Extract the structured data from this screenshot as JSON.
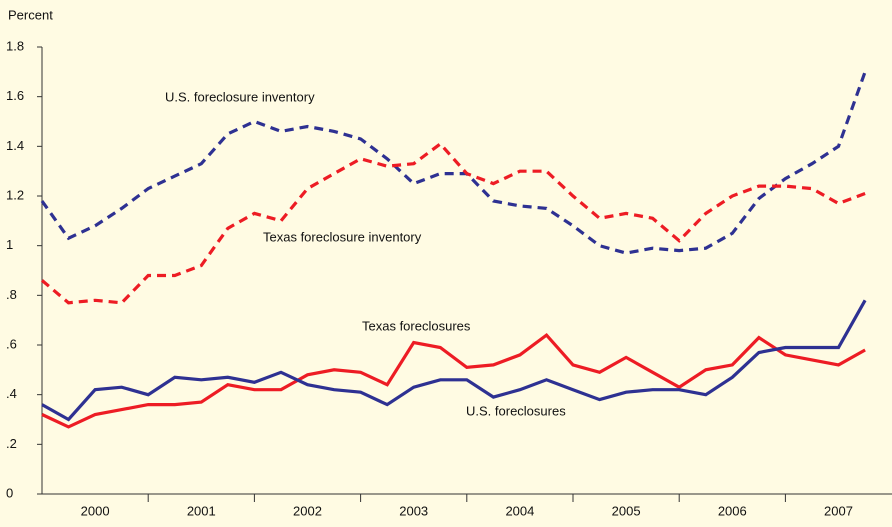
{
  "chart_data": {
    "type": "line",
    "y_label": "Percent",
    "categories": [
      "2000",
      null,
      null,
      null,
      "2001",
      null,
      null,
      null,
      "2002",
      null,
      null,
      null,
      "2003",
      null,
      null,
      null,
      "2004",
      null,
      null,
      null,
      "2005",
      null,
      null,
      null,
      "2006",
      null,
      null,
      null,
      "2007",
      null,
      null,
      null
    ],
    "series": [
      {
        "name": "U.S. foreclosure inventory",
        "color": "#2e3192",
        "dash": true,
        "values": [
          1.18,
          1.03,
          1.08,
          1.15,
          1.23,
          1.28,
          1.33,
          1.45,
          1.5,
          1.46,
          1.48,
          1.46,
          1.43,
          1.35,
          1.25,
          1.29,
          1.29,
          1.18,
          1.16,
          1.15,
          1.08,
          1.0,
          0.97,
          0.99,
          0.98,
          0.99,
          1.05,
          1.19,
          1.27,
          1.33,
          1.4,
          1.7
        ]
      },
      {
        "name": "Texas foreclosure inventory",
        "color": "#ed1c24",
        "dash": true,
        "values": [
          0.86,
          0.77,
          0.78,
          0.77,
          0.88,
          0.88,
          0.92,
          1.07,
          1.13,
          1.1,
          1.23,
          1.29,
          1.35,
          1.32,
          1.33,
          1.41,
          1.29,
          1.25,
          1.3,
          1.3,
          1.2,
          1.11,
          1.13,
          1.11,
          1.02,
          1.13,
          1.2,
          1.24,
          1.24,
          1.23,
          1.17,
          1.21
        ]
      },
      {
        "name": "Texas foreclosures",
        "color": "#ed1c24",
        "dash": false,
        "values": [
          0.32,
          0.27,
          0.32,
          0.34,
          0.36,
          0.36,
          0.37,
          0.44,
          0.42,
          0.42,
          0.48,
          0.5,
          0.49,
          0.44,
          0.61,
          0.59,
          0.51,
          0.52,
          0.56,
          0.64,
          0.52,
          0.49,
          0.55,
          0.49,
          0.43,
          0.5,
          0.52,
          0.63,
          0.56,
          0.54,
          0.52,
          0.58
        ]
      },
      {
        "name": "U.S. foreclosures",
        "color": "#2e3192",
        "dash": false,
        "values": [
          0.36,
          0.3,
          0.42,
          0.43,
          0.4,
          0.47,
          0.46,
          0.47,
          0.45,
          0.49,
          0.44,
          0.42,
          0.41,
          0.36,
          0.43,
          0.46,
          0.46,
          0.39,
          0.42,
          0.46,
          0.42,
          0.38,
          0.41,
          0.42,
          0.42,
          0.4,
          0.47,
          0.57,
          0.59,
          0.59,
          0.59,
          0.78
        ]
      }
    ],
    "ylim": [
      0,
      1.8
    ],
    "yticks": [
      0,
      {
        "value": 0.2,
        "label": ".2"
      },
      {
        "value": 0.4,
        "label": ".4"
      },
      {
        "value": 0.6,
        "label": ".6"
      },
      {
        "value": 0.8,
        "label": ".8"
      },
      1,
      1.2,
      1.4,
      1.6,
      1.8
    ],
    "grid": false
  }
}
